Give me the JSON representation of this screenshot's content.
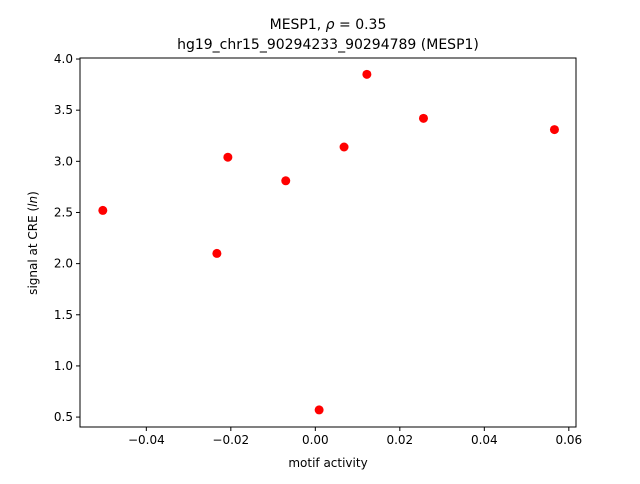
{
  "chart_data": {
    "type": "scatter",
    "title_line1": "MESP1, ",
    "title_rho": "ρ",
    "title_rho_value": " = 0.35",
    "title_line2": "hg19_chr15_90294233_90294789 (MESP1)",
    "xlabel": "motif activity",
    "ylabel_prefix": "signal at CRE (",
    "ylabel_unit": "ln",
    "ylabel_suffix": ")",
    "xlim": [
      -0.0557,
      0.0617
    ],
    "ylim": [
      0.403,
      4.01
    ],
    "x_ticks": [
      -0.04,
      -0.02,
      0.0,
      0.02,
      0.04,
      0.06
    ],
    "x_tick_labels": [
      "−0.04",
      "−0.02",
      "0.00",
      "0.02",
      "0.04",
      "0.06"
    ],
    "y_ticks": [
      0.5,
      1.0,
      1.5,
      2.0,
      2.5,
      3.0,
      3.5,
      4.0
    ],
    "y_tick_labels": [
      "0.5",
      "1.0",
      "1.5",
      "2.0",
      "2.5",
      "3.0",
      "3.5",
      "4.0"
    ],
    "grid": false,
    "marker_color": "#ff0000",
    "points": [
      {
        "x": -0.0503,
        "y": 2.52
      },
      {
        "x": -0.0233,
        "y": 2.1
      },
      {
        "x": -0.0207,
        "y": 3.04
      },
      {
        "x": -0.007,
        "y": 2.81
      },
      {
        "x": 0.0009,
        "y": 0.57
      },
      {
        "x": 0.0068,
        "y": 3.14
      },
      {
        "x": 0.0122,
        "y": 3.85
      },
      {
        "x": 0.0256,
        "y": 3.42
      },
      {
        "x": 0.0566,
        "y": 3.31
      }
    ]
  }
}
